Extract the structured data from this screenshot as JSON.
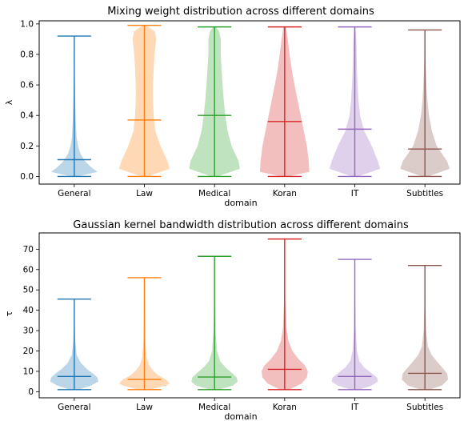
{
  "chart_data": [
    {
      "type": "violin",
      "title": "Mixing weight distribution across different domains",
      "xlabel": "domain",
      "ylabel": "λ",
      "ylim": [
        -0.05,
        1.02
      ],
      "yticks": [
        0.0,
        0.2,
        0.4,
        0.6,
        0.8,
        1.0
      ],
      "ytick_labels": [
        "0.0",
        "0.2",
        "0.4",
        "0.6",
        "0.8",
        "1.0"
      ],
      "categories": [
        "General",
        "Law",
        "Medical",
        "Koran",
        "IT",
        "Subtitles"
      ],
      "colors": [
        "#1f77b4",
        "#ff7f0e",
        "#2ca02c",
        "#d62728",
        "#9467bd",
        "#8c564b"
      ],
      "series": [
        {
          "min": 0.0,
          "max": 0.92,
          "mean": 0.11,
          "density": [
            [
              0.0,
              0.1
            ],
            [
              0.03,
              0.75
            ],
            [
              0.06,
              0.55
            ],
            [
              0.1,
              0.35
            ],
            [
              0.15,
              0.2
            ],
            [
              0.2,
              0.12
            ],
            [
              0.25,
              0.08
            ],
            [
              0.35,
              0.05
            ],
            [
              0.5,
              0.03
            ],
            [
              0.7,
              0.015
            ],
            [
              0.92,
              0.005
            ]
          ]
        },
        {
          "min": 0.0,
          "max": 0.99,
          "mean": 0.37,
          "density": [
            [
              0.0,
              0.1
            ],
            [
              0.05,
              0.82
            ],
            [
              0.1,
              0.75
            ],
            [
              0.2,
              0.52
            ],
            [
              0.3,
              0.35
            ],
            [
              0.4,
              0.3
            ],
            [
              0.5,
              0.28
            ],
            [
              0.6,
              0.28
            ],
            [
              0.7,
              0.3
            ],
            [
              0.8,
              0.33
            ],
            [
              0.9,
              0.38
            ],
            [
              0.95,
              0.34
            ],
            [
              0.99,
              0.05
            ]
          ]
        },
        {
          "min": 0.0,
          "max": 0.98,
          "mean": 0.4,
          "density": [
            [
              0.0,
              0.1
            ],
            [
              0.05,
              0.82
            ],
            [
              0.1,
              0.78
            ],
            [
              0.2,
              0.55
            ],
            [
              0.3,
              0.42
            ],
            [
              0.4,
              0.35
            ],
            [
              0.5,
              0.3
            ],
            [
              0.6,
              0.26
            ],
            [
              0.7,
              0.23
            ],
            [
              0.8,
              0.2
            ],
            [
              0.9,
              0.2
            ],
            [
              0.95,
              0.15
            ],
            [
              0.98,
              0.04
            ]
          ]
        },
        {
          "min": 0.0,
          "max": 0.98,
          "mean": 0.36,
          "density": [
            [
              0.0,
              0.1
            ],
            [
              0.03,
              0.8
            ],
            [
              0.1,
              0.78
            ],
            [
              0.2,
              0.72
            ],
            [
              0.3,
              0.62
            ],
            [
              0.4,
              0.52
            ],
            [
              0.5,
              0.42
            ],
            [
              0.6,
              0.32
            ],
            [
              0.7,
              0.23
            ],
            [
              0.8,
              0.16
            ],
            [
              0.9,
              0.1
            ],
            [
              0.98,
              0.04
            ]
          ]
        },
        {
          "min": 0.0,
          "max": 0.98,
          "mean": 0.31,
          "density": [
            [
              0.0,
              0.1
            ],
            [
              0.05,
              0.82
            ],
            [
              0.1,
              0.75
            ],
            [
              0.2,
              0.55
            ],
            [
              0.3,
              0.3
            ],
            [
              0.4,
              0.17
            ],
            [
              0.5,
              0.12
            ],
            [
              0.6,
              0.09
            ],
            [
              0.7,
              0.07
            ],
            [
              0.8,
              0.06
            ],
            [
              0.9,
              0.05
            ],
            [
              0.98,
              0.02
            ]
          ]
        },
        {
          "min": 0.0,
          "max": 0.96,
          "mean": 0.18,
          "density": [
            [
              0.0,
              0.1
            ],
            [
              0.05,
              0.8
            ],
            [
              0.1,
              0.72
            ],
            [
              0.15,
              0.55
            ],
            [
              0.2,
              0.38
            ],
            [
              0.3,
              0.22
            ],
            [
              0.4,
              0.13
            ],
            [
              0.5,
              0.08
            ],
            [
              0.6,
              0.05
            ],
            [
              0.7,
              0.03
            ],
            [
              0.8,
              0.02
            ],
            [
              0.96,
              0.005
            ]
          ]
        }
      ]
    },
    {
      "type": "violin",
      "title": "Gaussian kernel bandwidth distribution across different domains",
      "xlabel": "domain",
      "ylabel": "τ",
      "ylim": [
        -3,
        78
      ],
      "yticks": [
        0,
        10,
        20,
        30,
        40,
        50,
        60,
        70
      ],
      "ytick_labels": [
        "0",
        "10",
        "20",
        "30",
        "40",
        "50",
        "60",
        "70"
      ],
      "categories": [
        "General",
        "Law",
        "Medical",
        "Koran",
        "IT",
        "Subtitles"
      ],
      "colors": [
        "#1f77b4",
        "#ff7f0e",
        "#2ca02c",
        "#d62728",
        "#9467bd",
        "#8c564b"
      ],
      "series": [
        {
          "min": 1,
          "max": 45.5,
          "mean": 7.5,
          "density": [
            [
              1,
              0.15
            ],
            [
              3,
              0.55
            ],
            [
              5,
              0.78
            ],
            [
              7,
              0.75
            ],
            [
              9,
              0.6
            ],
            [
              11,
              0.42
            ],
            [
              14,
              0.22
            ],
            [
              18,
              0.08
            ],
            [
              25,
              0.03
            ],
            [
              35,
              0.015
            ],
            [
              45.5,
              0.005
            ]
          ]
        },
        {
          "min": 1,
          "max": 56,
          "mean": 6,
          "density": [
            [
              1,
              0.2
            ],
            [
              3,
              0.7
            ],
            [
              4,
              0.82
            ],
            [
              6,
              0.7
            ],
            [
              8,
              0.45
            ],
            [
              10,
              0.3
            ],
            [
              13,
              0.15
            ],
            [
              17,
              0.07
            ],
            [
              25,
              0.03
            ],
            [
              40,
              0.015
            ],
            [
              56,
              0.005
            ]
          ]
        },
        {
          "min": 1,
          "max": 66.5,
          "mean": 7.2,
          "density": [
            [
              1,
              0.15
            ],
            [
              3,
              0.6
            ],
            [
              5,
              0.75
            ],
            [
              7,
              0.72
            ],
            [
              9,
              0.58
            ],
            [
              12,
              0.35
            ],
            [
              15,
              0.18
            ],
            [
              20,
              0.08
            ],
            [
              30,
              0.03
            ],
            [
              45,
              0.015
            ],
            [
              66.5,
              0.005
            ]
          ]
        },
        {
          "min": 1,
          "max": 75,
          "mean": 11,
          "density": [
            [
              1,
              0.15
            ],
            [
              4,
              0.55
            ],
            [
              7,
              0.72
            ],
            [
              10,
              0.75
            ],
            [
              13,
              0.65
            ],
            [
              16,
              0.45
            ],
            [
              20,
              0.25
            ],
            [
              25,
              0.12
            ],
            [
              32,
              0.05
            ],
            [
              45,
              0.02
            ],
            [
              60,
              0.01
            ],
            [
              75,
              0.005
            ]
          ]
        },
        {
          "min": 1,
          "max": 65,
          "mean": 7.5,
          "density": [
            [
              1,
              0.15
            ],
            [
              3,
              0.55
            ],
            [
              5,
              0.75
            ],
            [
              7,
              0.72
            ],
            [
              9,
              0.55
            ],
            [
              12,
              0.3
            ],
            [
              15,
              0.15
            ],
            [
              20,
              0.07
            ],
            [
              30,
              0.03
            ],
            [
              45,
              0.015
            ],
            [
              65,
              0.005
            ]
          ]
        },
        {
          "min": 1,
          "max": 62,
          "mean": 9,
          "density": [
            [
              1,
              0.15
            ],
            [
              3,
              0.55
            ],
            [
              6,
              0.75
            ],
            [
              9,
              0.72
            ],
            [
              12,
              0.55
            ],
            [
              15,
              0.38
            ],
            [
              18,
              0.22
            ],
            [
              22,
              0.1
            ],
            [
              30,
              0.04
            ],
            [
              45,
              0.015
            ],
            [
              62,
              0.005
            ]
          ]
        }
      ]
    }
  ]
}
